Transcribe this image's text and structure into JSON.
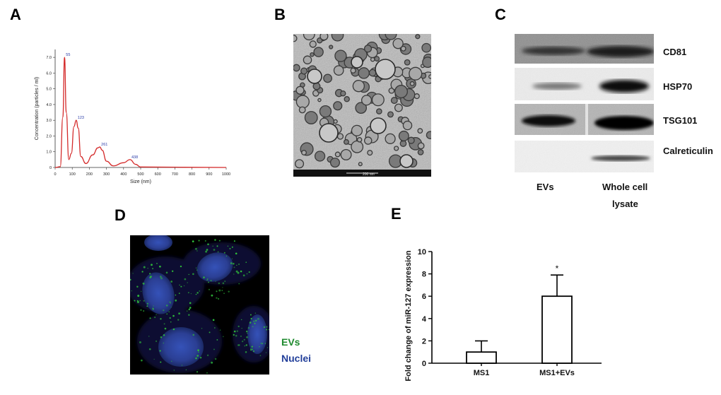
{
  "panels": {
    "A": "A",
    "B": "B",
    "C": "C",
    "D": "D",
    "E": "E"
  },
  "panel_a": {
    "xlabel": "Size (nm)",
    "ylabel": "Concentration (particles / ml)",
    "x_ticks": [
      "0",
      "100",
      "200",
      "300",
      "400",
      "500",
      "600",
      "700",
      "800",
      "900",
      "1000"
    ],
    "y_ticks": [
      "0",
      "1.0",
      "2.0",
      "3.0",
      "4.0",
      "5.0",
      "6.0",
      "7.0"
    ],
    "peak_labels": [
      "55",
      "123",
      "261",
      "438"
    ],
    "line_color": "#d42a2a",
    "peak_label_color": "#2a3ca8"
  },
  "panel_b": {
    "scale_bar": "200 nm"
  },
  "panel_c": {
    "proteins": [
      "CD81",
      "HSP70",
      "TSG101",
      "Calreticulin"
    ],
    "lane_labels": {
      "evs": "EVs",
      "whole_cell_1": "Whole cell",
      "whole_cell_2": "lysate"
    }
  },
  "panel_d": {
    "legend_evs": "EVs",
    "legend_nuclei": "Nuclei",
    "evs_color": "#1e8a2e",
    "nuclei_color": "#223f9a"
  },
  "chart_data": [
    {
      "type": "line",
      "panel": "A",
      "xlabel": "Size (nm)",
      "ylabel": "Concentration (particles / ml)",
      "xlim": [
        0,
        1000
      ],
      "ylim": [
        0,
        7.5
      ],
      "series": [
        {
          "x": [
            0,
            30,
            45,
            55,
            65,
            80,
            95,
            110,
            123,
            135,
            150,
            180,
            220,
            250,
            261,
            275,
            300,
            340,
            400,
            438,
            470,
            500,
            1000
          ],
          "values": [
            0,
            0.05,
            3.2,
            7.0,
            3.5,
            0.5,
            0.9,
            2.6,
            3.0,
            2.5,
            0.7,
            0.25,
            0.8,
            1.25,
            1.3,
            1.1,
            0.4,
            0.1,
            0.3,
            0.5,
            0.2,
            0.03,
            0
          ]
        }
      ],
      "annotations": [
        "55",
        "123",
        "261",
        "438"
      ]
    },
    {
      "type": "bar",
      "panel": "E",
      "categories": [
        "MS1",
        "MS1+EVs"
      ],
      "values": [
        1.0,
        6.0
      ],
      "errors": [
        1.0,
        1.9
      ],
      "significance": [
        "",
        "*"
      ],
      "ylabel": "Fold change of miR-127 expression",
      "ylim": [
        0,
        10
      ],
      "y_ticks": [
        "0",
        "2",
        "4",
        "6",
        "8",
        "10"
      ]
    }
  ]
}
